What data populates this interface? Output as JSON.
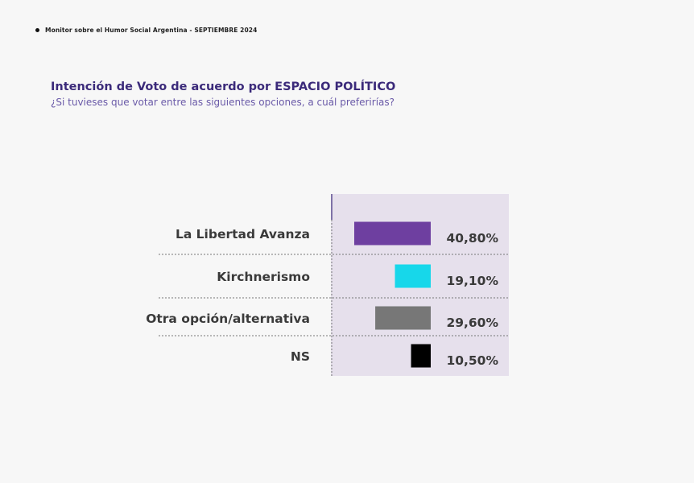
{
  "header": {
    "text": "Monitor sobre el Humor Social Argentina  - SEPTIEMBRE 2024"
  },
  "chart_data": {
    "type": "bar",
    "orientation": "horizontal",
    "title": "Intención de Voto de acuerdo por ESPACIO POLÍTICO",
    "subtitle": "¿Si tuvieses que votar entre las siguientes opciones, a cuál preferirías?",
    "categories": [
      "La Libertad Avanza",
      "Kirchnerismo",
      "Otra opción/alternativa",
      "NS"
    ],
    "values": [
      40.8,
      19.1,
      29.6,
      10.5
    ],
    "value_labels": [
      "40,80%",
      "19,10%",
      "29,60%",
      "10,50%"
    ],
    "colors": [
      "#6e3fa0",
      "#17d7ea",
      "#777777",
      "#000000"
    ],
    "plot_background": "#e6e0ec",
    "grid": false,
    "bar_direction": "right-to-left"
  }
}
